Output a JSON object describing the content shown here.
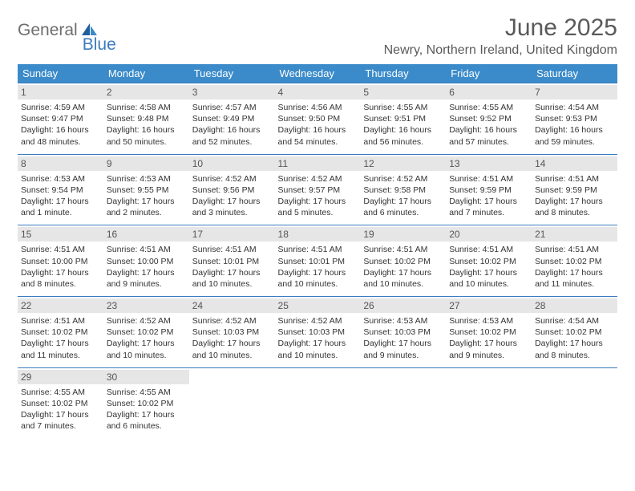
{
  "brand": {
    "part1": "General",
    "part2": "Blue"
  },
  "title": "June 2025",
  "location": "Newry, Northern Ireland, United Kingdom",
  "colors": {
    "header_bg": "#3b8bca",
    "header_text": "#ffffff",
    "accent": "#3b7bbf",
    "daynum_bg": "#e6e6e6",
    "body_text": "#333333",
    "title_text": "#5a5a5a"
  },
  "weekdays": [
    "Sunday",
    "Monday",
    "Tuesday",
    "Wednesday",
    "Thursday",
    "Friday",
    "Saturday"
  ],
  "days": [
    {
      "n": "1",
      "sr": "Sunrise: 4:59 AM",
      "ss": "Sunset: 9:47 PM",
      "d1": "Daylight: 16 hours",
      "d2": "and 48 minutes."
    },
    {
      "n": "2",
      "sr": "Sunrise: 4:58 AM",
      "ss": "Sunset: 9:48 PM",
      "d1": "Daylight: 16 hours",
      "d2": "and 50 minutes."
    },
    {
      "n": "3",
      "sr": "Sunrise: 4:57 AM",
      "ss": "Sunset: 9:49 PM",
      "d1": "Daylight: 16 hours",
      "d2": "and 52 minutes."
    },
    {
      "n": "4",
      "sr": "Sunrise: 4:56 AM",
      "ss": "Sunset: 9:50 PM",
      "d1": "Daylight: 16 hours",
      "d2": "and 54 minutes."
    },
    {
      "n": "5",
      "sr": "Sunrise: 4:55 AM",
      "ss": "Sunset: 9:51 PM",
      "d1": "Daylight: 16 hours",
      "d2": "and 56 minutes."
    },
    {
      "n": "6",
      "sr": "Sunrise: 4:55 AM",
      "ss": "Sunset: 9:52 PM",
      "d1": "Daylight: 16 hours",
      "d2": "and 57 minutes."
    },
    {
      "n": "7",
      "sr": "Sunrise: 4:54 AM",
      "ss": "Sunset: 9:53 PM",
      "d1": "Daylight: 16 hours",
      "d2": "and 59 minutes."
    },
    {
      "n": "8",
      "sr": "Sunrise: 4:53 AM",
      "ss": "Sunset: 9:54 PM",
      "d1": "Daylight: 17 hours",
      "d2": "and 1 minute."
    },
    {
      "n": "9",
      "sr": "Sunrise: 4:53 AM",
      "ss": "Sunset: 9:55 PM",
      "d1": "Daylight: 17 hours",
      "d2": "and 2 minutes."
    },
    {
      "n": "10",
      "sr": "Sunrise: 4:52 AM",
      "ss": "Sunset: 9:56 PM",
      "d1": "Daylight: 17 hours",
      "d2": "and 3 minutes."
    },
    {
      "n": "11",
      "sr": "Sunrise: 4:52 AM",
      "ss": "Sunset: 9:57 PM",
      "d1": "Daylight: 17 hours",
      "d2": "and 5 minutes."
    },
    {
      "n": "12",
      "sr": "Sunrise: 4:52 AM",
      "ss": "Sunset: 9:58 PM",
      "d1": "Daylight: 17 hours",
      "d2": "and 6 minutes."
    },
    {
      "n": "13",
      "sr": "Sunrise: 4:51 AM",
      "ss": "Sunset: 9:59 PM",
      "d1": "Daylight: 17 hours",
      "d2": "and 7 minutes."
    },
    {
      "n": "14",
      "sr": "Sunrise: 4:51 AM",
      "ss": "Sunset: 9:59 PM",
      "d1": "Daylight: 17 hours",
      "d2": "and 8 minutes."
    },
    {
      "n": "15",
      "sr": "Sunrise: 4:51 AM",
      "ss": "Sunset: 10:00 PM",
      "d1": "Daylight: 17 hours",
      "d2": "and 8 minutes."
    },
    {
      "n": "16",
      "sr": "Sunrise: 4:51 AM",
      "ss": "Sunset: 10:00 PM",
      "d1": "Daylight: 17 hours",
      "d2": "and 9 minutes."
    },
    {
      "n": "17",
      "sr": "Sunrise: 4:51 AM",
      "ss": "Sunset: 10:01 PM",
      "d1": "Daylight: 17 hours",
      "d2": "and 10 minutes."
    },
    {
      "n": "18",
      "sr": "Sunrise: 4:51 AM",
      "ss": "Sunset: 10:01 PM",
      "d1": "Daylight: 17 hours",
      "d2": "and 10 minutes."
    },
    {
      "n": "19",
      "sr": "Sunrise: 4:51 AM",
      "ss": "Sunset: 10:02 PM",
      "d1": "Daylight: 17 hours",
      "d2": "and 10 minutes."
    },
    {
      "n": "20",
      "sr": "Sunrise: 4:51 AM",
      "ss": "Sunset: 10:02 PM",
      "d1": "Daylight: 17 hours",
      "d2": "and 10 minutes."
    },
    {
      "n": "21",
      "sr": "Sunrise: 4:51 AM",
      "ss": "Sunset: 10:02 PM",
      "d1": "Daylight: 17 hours",
      "d2": "and 11 minutes."
    },
    {
      "n": "22",
      "sr": "Sunrise: 4:51 AM",
      "ss": "Sunset: 10:02 PM",
      "d1": "Daylight: 17 hours",
      "d2": "and 11 minutes."
    },
    {
      "n": "23",
      "sr": "Sunrise: 4:52 AM",
      "ss": "Sunset: 10:02 PM",
      "d1": "Daylight: 17 hours",
      "d2": "and 10 minutes."
    },
    {
      "n": "24",
      "sr": "Sunrise: 4:52 AM",
      "ss": "Sunset: 10:03 PM",
      "d1": "Daylight: 17 hours",
      "d2": "and 10 minutes."
    },
    {
      "n": "25",
      "sr": "Sunrise: 4:52 AM",
      "ss": "Sunset: 10:03 PM",
      "d1": "Daylight: 17 hours",
      "d2": "and 10 minutes."
    },
    {
      "n": "26",
      "sr": "Sunrise: 4:53 AM",
      "ss": "Sunset: 10:03 PM",
      "d1": "Daylight: 17 hours",
      "d2": "and 9 minutes."
    },
    {
      "n": "27",
      "sr": "Sunrise: 4:53 AM",
      "ss": "Sunset: 10:02 PM",
      "d1": "Daylight: 17 hours",
      "d2": "and 9 minutes."
    },
    {
      "n": "28",
      "sr": "Sunrise: 4:54 AM",
      "ss": "Sunset: 10:02 PM",
      "d1": "Daylight: 17 hours",
      "d2": "and 8 minutes."
    },
    {
      "n": "29",
      "sr": "Sunrise: 4:55 AM",
      "ss": "Sunset: 10:02 PM",
      "d1": "Daylight: 17 hours",
      "d2": "and 7 minutes."
    },
    {
      "n": "30",
      "sr": "Sunrise: 4:55 AM",
      "ss": "Sunset: 10:02 PM",
      "d1": "Daylight: 17 hours",
      "d2": "and 6 minutes."
    }
  ]
}
